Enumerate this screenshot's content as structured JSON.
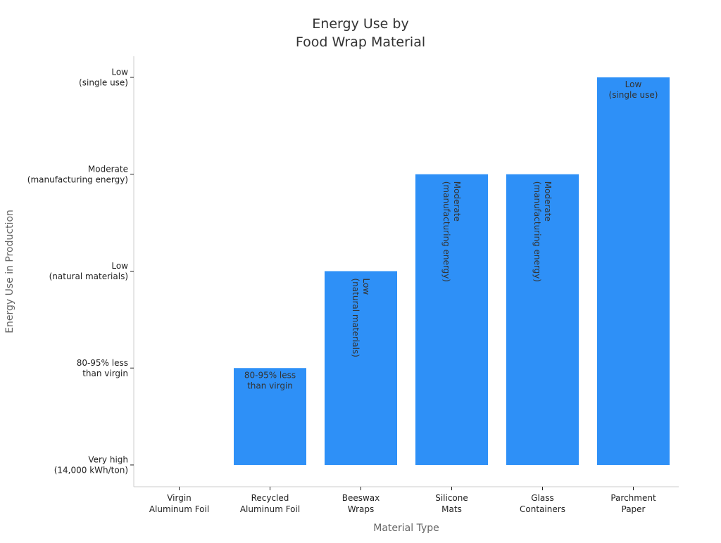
{
  "chart_data": {
    "type": "bar",
    "title": [
      "Energy Use by",
      "Food Wrap Material"
    ],
    "xlabel": "Material Type",
    "ylabel": "Energy Use in Production",
    "categories": [
      [
        "Virgin",
        "Aluminum Foil"
      ],
      [
        "Recycled",
        "Aluminum Foil"
      ],
      [
        "Beeswax",
        "Wraps"
      ],
      [
        "Silicone",
        "Mats"
      ],
      [
        "Glass",
        "Containers"
      ],
      [
        "Parchment",
        "Paper"
      ]
    ],
    "y_ticks": [
      [
        "Very high",
        "(14,000 kWh/ton)"
      ],
      [
        "80-95% less",
        "than virgin"
      ],
      [
        "Low",
        "(natural materials)"
      ],
      [
        "Moderate",
        "(manufacturing energy)"
      ],
      [
        "Low",
        "(single use)"
      ]
    ],
    "values": [
      0,
      1,
      2,
      3,
      3,
      4
    ],
    "value_labels": [
      [],
      [
        "80-95% less",
        "than virgin"
      ],
      [
        "Low",
        "(natural materials)"
      ],
      [
        "Moderate",
        "(manufacturing energy)"
      ],
      [
        "Moderate",
        "(manufacturing energy)"
      ],
      [
        "Low",
        "(single use)"
      ]
    ],
    "label_orientation": [
      "horizontal",
      "horizontal",
      "vertical",
      "vertical",
      "vertical",
      "horizontal"
    ],
    "ylim": [
      0,
      4
    ],
    "grid": false,
    "legend": "none",
    "colors": {
      "bar": "#2e90f7",
      "axis": "#cccccc",
      "title": "#333333",
      "axis_label": "#666666",
      "tick": "#222222",
      "bar_label": "#333333"
    }
  }
}
